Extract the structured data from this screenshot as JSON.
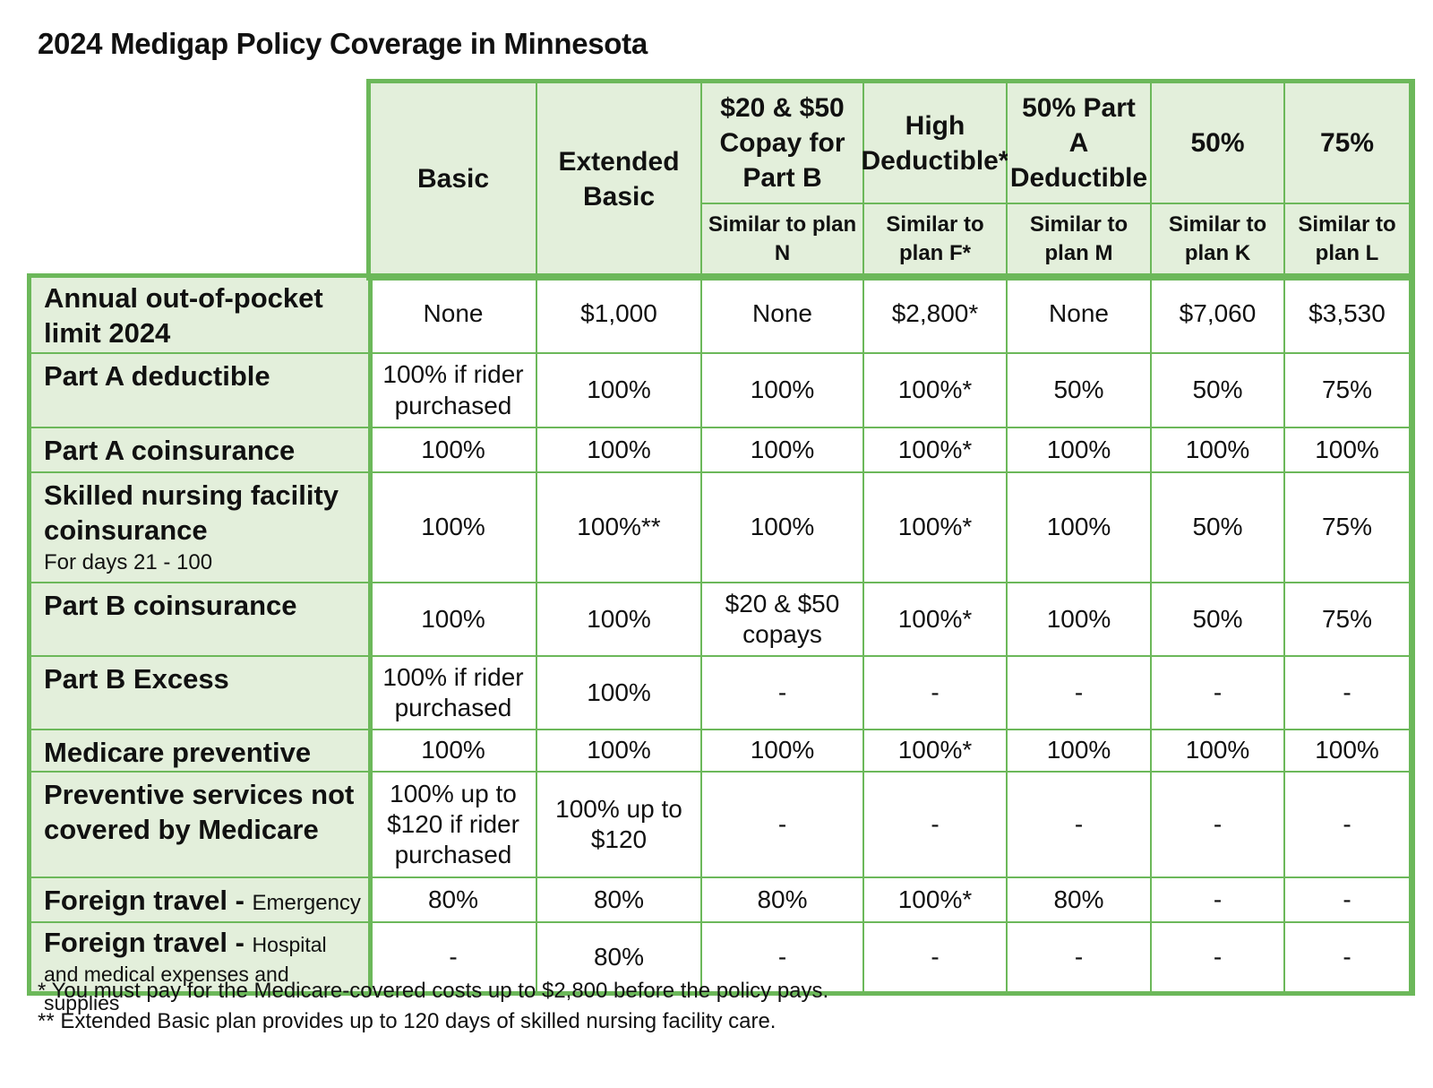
{
  "title": "2024 Medigap Policy Coverage in Minnesota",
  "colors": {
    "accent_border": "#6cb85a",
    "header_fill": "#e3efdb"
  },
  "columns": [
    {
      "name": "Basic",
      "similar": ""
    },
    {
      "name": "Extended Basic",
      "similar": ""
    },
    {
      "name": "$20 & $50 Copay for Part B",
      "similar": "Similar to plan N"
    },
    {
      "name": "High Deductible*",
      "similar": "Similar to plan F*"
    },
    {
      "name": "50% Part A Deductible",
      "similar": "Similar to plan M"
    },
    {
      "name": "50%",
      "similar": "Similar to plan K"
    },
    {
      "name": "75%",
      "similar": "Similar to plan L"
    }
  ],
  "rows": [
    {
      "label": "Annual out-of-pocket limit 2024",
      "sublabel": "",
      "values": [
        "None",
        "$1,000",
        "None",
        "$2,800*",
        "None",
        "$7,060",
        "$3,530"
      ]
    },
    {
      "label": "Part A deductible",
      "sublabel": "",
      "values": [
        "100% if rider purchased",
        "100%",
        "100%",
        "100%*",
        "50%",
        "50%",
        "75%"
      ]
    },
    {
      "label": "Part A coinsurance",
      "sublabel": "",
      "values": [
        "100%",
        "100%",
        "100%",
        "100%*",
        "100%",
        "100%",
        "100%"
      ]
    },
    {
      "label": "Skilled nursing facility coinsurance",
      "sublabel": "For days 21 - 100",
      "values": [
        "100%",
        "100%**",
        "100%",
        "100%*",
        "100%",
        "50%",
        "75%"
      ]
    },
    {
      "label": "Part B coinsurance",
      "sublabel": "",
      "values": [
        "100%",
        "100%",
        "$20 & $50 copays",
        "100%*",
        "100%",
        "50%",
        "75%"
      ]
    },
    {
      "label": "Part B Excess",
      "sublabel": "",
      "values": [
        "100% if rider purchased",
        "100%",
        "-",
        "-",
        "-",
        "-",
        "-"
      ]
    },
    {
      "label": "Medicare preventive care",
      "sublabel": "",
      "values": [
        "100%",
        "100%",
        "100%",
        "100%*",
        "100%",
        "100%",
        "100%"
      ]
    },
    {
      "label": "Preventive services not covered by Medicare",
      "sublabel": "",
      "values": [
        "100% up to $120 if rider purchased",
        "100% up to $120",
        "-",
        "-",
        "-",
        "-",
        "-"
      ]
    },
    {
      "label": "Foreign travel - ",
      "sublabel": "Emergency",
      "values": [
        "80%",
        "80%",
        "80%",
        "100%*",
        "80%",
        "-",
        "-"
      ]
    },
    {
      "label": "Foreign travel - ",
      "sublabel": "Hospital and medical expenses and supplies",
      "values": [
        "-",
        "80%",
        "-",
        "-",
        "-",
        "-",
        "-"
      ]
    }
  ],
  "footnotes": [
    "* You must pay for the Medicare-covered costs up to $2,800 before the policy pays.",
    "** Extended Basic plan provides up to 120 days of skilled nursing facility care."
  ]
}
